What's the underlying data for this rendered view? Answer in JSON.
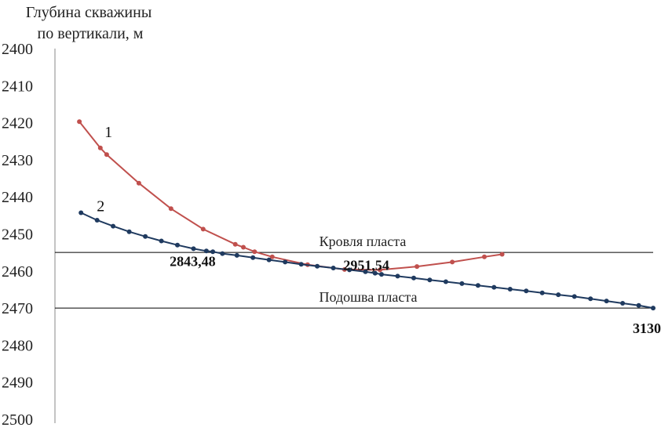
{
  "chart_data": {
    "type": "line",
    "title": "",
    "ylabel_lines": [
      "Глубина скважины",
      "по вертикали, м"
    ],
    "xlabel": "",
    "ylim": [
      2400,
      2500
    ],
    "y_inverted": true,
    "y_ticks": [
      "2400",
      "2410",
      "2420",
      "2430",
      "2440",
      "2450",
      "2460",
      "2470",
      "2480",
      "2490",
      "2500"
    ],
    "grid": false,
    "colors": {
      "series1": "#c0504d",
      "series2": "#1f3a5f",
      "lines": "#000000"
    },
    "reference_lines": [
      {
        "label": "Кровля пласта",
        "y": 2455
      },
      {
        "label": "Подошва пласта",
        "y": 2470
      }
    ],
    "annotations": [
      {
        "text": "2843,48",
        "x": 2843.48,
        "y": 2457
      },
      {
        "text": "2951,54",
        "x": 2951.54,
        "y": 2458
      },
      {
        "text": "3130",
        "x": 3130,
        "y": 2475
      }
    ],
    "x_domain": [
      2770,
      3130
    ],
    "series": [
      {
        "name": "1",
        "points": [
          [
            2773,
            2419.7
          ],
          [
            2786,
            2426.8
          ],
          [
            2790,
            2428.6
          ],
          [
            2810,
            2436.3
          ],
          [
            2830,
            2443.2
          ],
          [
            2850,
            2448.7
          ],
          [
            2870,
            2452.8
          ],
          [
            2875,
            2453.6
          ],
          [
            2882,
            2454.8
          ],
          [
            2893,
            2456.2
          ],
          [
            2915,
            2458.3
          ],
          [
            2938,
            2459.6
          ],
          [
            2960,
            2459.7
          ],
          [
            2983,
            2458.8
          ],
          [
            3005,
            2457.6
          ],
          [
            3025,
            2456.2
          ],
          [
            3036,
            2455.5
          ]
        ]
      },
      {
        "name": "2",
        "points": [
          [
            2774,
            2444.3
          ],
          [
            2784,
            2446.3
          ],
          [
            2794,
            2447.9
          ],
          [
            2804,
            2449.4
          ],
          [
            2814,
            2450.7
          ],
          [
            2824,
            2451.9
          ],
          [
            2834,
            2453.0
          ],
          [
            2844,
            2454.0
          ],
          [
            2852,
            2454.6
          ],
          [
            2856,
            2454.8
          ],
          [
            2862,
            2455.3
          ],
          [
            2871,
            2455.8
          ],
          [
            2881,
            2456.4
          ],
          [
            2891,
            2457.0
          ],
          [
            2901,
            2457.6
          ],
          [
            2911,
            2458.2
          ],
          [
            2921,
            2458.7
          ],
          [
            2931,
            2459.2
          ],
          [
            2941,
            2459.7
          ],
          [
            2951,
            2460.2
          ],
          [
            2957,
            2460.6
          ],
          [
            2961,
            2460.9
          ],
          [
            2971,
            2461.4
          ],
          [
            2981,
            2461.9
          ],
          [
            2991,
            2462.4
          ],
          [
            3001,
            2462.9
          ],
          [
            3011,
            2463.4
          ],
          [
            3021,
            2463.9
          ],
          [
            3031,
            2464.4
          ],
          [
            3041,
            2464.9
          ],
          [
            3051,
            2465.4
          ],
          [
            3061,
            2465.9
          ],
          [
            3071,
            2466.4
          ],
          [
            3081,
            2466.9
          ],
          [
            3091,
            2467.5
          ],
          [
            3101,
            2468.1
          ],
          [
            3111,
            2468.7
          ],
          [
            3121,
            2469.3
          ],
          [
            3130,
            2470.0
          ]
        ]
      }
    ]
  }
}
